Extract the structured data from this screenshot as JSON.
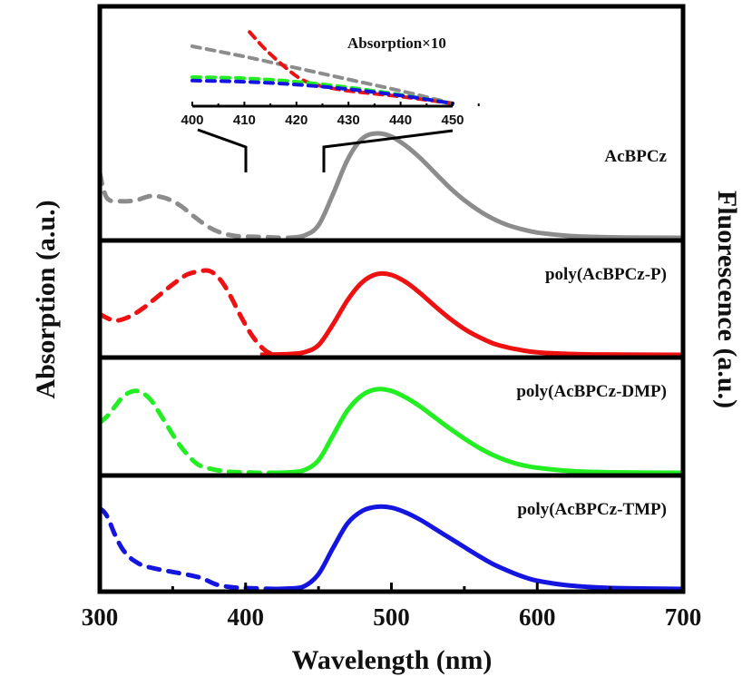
{
  "chart_data": {
    "type": "line",
    "title": "",
    "xlabel": "Wavelength (nm)",
    "ylabel_left": "Absorption (a.u.)",
    "ylabel_right": "Fluorescence (a.u.)",
    "xlim": [
      300,
      700
    ],
    "x_ticks": [
      300,
      400,
      500,
      600,
      700
    ],
    "x_tick_labels": [
      "300",
      "400",
      "500",
      "600",
      "700"
    ],
    "x_minor_ticks": [
      350,
      450,
      550,
      650
    ],
    "grid": false,
    "layout": "stacked-panels",
    "panels": [
      {
        "label": "AcBPCz",
        "color": "#8c8c8c",
        "absorption": {
          "style": "dashed",
          "x": [
            300,
            305,
            315,
            325,
            335,
            345,
            355,
            365,
            375,
            385,
            395,
            405,
            415,
            425,
            435
          ],
          "y": [
            0.62,
            0.38,
            0.35,
            0.36,
            0.4,
            0.38,
            0.31,
            0.2,
            0.1,
            0.04,
            0.015,
            0.01,
            0.005,
            0.0,
            0.0
          ]
        },
        "fluorescence": {
          "style": "solid",
          "x": [
            430,
            440,
            450,
            460,
            470,
            480,
            490,
            500,
            510,
            520,
            530,
            540,
            550,
            560,
            570,
            580,
            590,
            600,
            620,
            640,
            660,
            700
          ],
          "y": [
            0.0,
            0.02,
            0.12,
            0.42,
            0.75,
            0.95,
            1.0,
            0.97,
            0.88,
            0.76,
            0.62,
            0.48,
            0.36,
            0.26,
            0.18,
            0.12,
            0.08,
            0.05,
            0.02,
            0.008,
            0.003,
            0.0
          ]
        },
        "fluorescence_peak_nm": 497
      },
      {
        "label": "poly(AcBPCz-P)",
        "color": "#ee1111",
        "absorption": {
          "style": "dashed",
          "x": [
            300,
            310,
            320,
            330,
            340,
            350,
            360,
            370,
            375,
            380,
            385,
            390,
            395,
            400,
            405,
            410,
            415,
            420
          ],
          "y": [
            0.45,
            0.38,
            0.42,
            0.52,
            0.65,
            0.78,
            0.89,
            0.93,
            0.93,
            0.88,
            0.78,
            0.64,
            0.48,
            0.33,
            0.2,
            0.1,
            0.03,
            0.0
          ]
        },
        "fluorescence": {
          "style": "solid",
          "x": [
            410,
            420,
            430,
            440,
            450,
            460,
            470,
            480,
            490,
            500,
            510,
            520,
            530,
            540,
            550,
            560,
            570,
            580,
            590,
            600,
            620,
            640,
            660,
            700
          ],
          "y": [
            0.0,
            0.005,
            0.01,
            0.03,
            0.12,
            0.38,
            0.68,
            0.9,
            1.0,
            0.99,
            0.9,
            0.76,
            0.6,
            0.45,
            0.32,
            0.22,
            0.14,
            0.09,
            0.055,
            0.03,
            0.012,
            0.005,
            0.002,
            0.0
          ]
        },
        "fluorescence_peak_nm": 495
      },
      {
        "label": "poly(AcBPCz-DMP)",
        "color": "#22ee22",
        "absorption": {
          "style": "dashed",
          "x": [
            300,
            305,
            310,
            315,
            320,
            325,
            330,
            335,
            340,
            345,
            350,
            355,
            360,
            365,
            370,
            380,
            390,
            400,
            410,
            420
          ],
          "y": [
            0.55,
            0.62,
            0.72,
            0.82,
            0.88,
            0.9,
            0.87,
            0.8,
            0.68,
            0.55,
            0.42,
            0.3,
            0.2,
            0.12,
            0.07,
            0.03,
            0.01,
            0.005,
            0.0,
            0.0
          ]
        },
        "fluorescence": {
          "style": "solid",
          "x": [
            420,
            430,
            440,
            450,
            460,
            470,
            480,
            490,
            500,
            510,
            520,
            530,
            540,
            550,
            560,
            570,
            580,
            590,
            600,
            620,
            640,
            660,
            700
          ],
          "y": [
            0.0,
            0.005,
            0.03,
            0.15,
            0.45,
            0.75,
            0.93,
            1.0,
            0.98,
            0.9,
            0.79,
            0.66,
            0.53,
            0.41,
            0.3,
            0.21,
            0.14,
            0.09,
            0.06,
            0.025,
            0.01,
            0.004,
            0.0
          ]
        },
        "fluorescence_peak_nm": 498
      },
      {
        "label": "poly(AcBPCz-TMP)",
        "color": "#1515e0",
        "absorption": {
          "style": "dashed",
          "x": [
            300,
            303,
            306,
            310,
            315,
            320,
            325,
            330,
            340,
            350,
            360,
            370,
            380,
            390,
            400,
            410,
            420,
            440
          ],
          "y": [
            0.9,
            0.86,
            0.78,
            0.62,
            0.46,
            0.36,
            0.3,
            0.26,
            0.22,
            0.19,
            0.16,
            0.12,
            0.05,
            0.02,
            0.01,
            0.005,
            0.0,
            0.0
          ]
        },
        "fluorescence": {
          "style": "solid",
          "x": [
            420,
            430,
            440,
            450,
            460,
            470,
            480,
            490,
            500,
            510,
            520,
            530,
            540,
            550,
            560,
            570,
            580,
            590,
            600,
            620,
            640,
            660,
            700
          ],
          "y": [
            0.0,
            0.005,
            0.03,
            0.18,
            0.5,
            0.8,
            0.95,
            1.0,
            0.99,
            0.93,
            0.84,
            0.73,
            0.62,
            0.51,
            0.4,
            0.3,
            0.22,
            0.15,
            0.1,
            0.045,
            0.02,
            0.008,
            0.0
          ]
        },
        "fluorescence_peak_nm": 497
      }
    ],
    "inset": {
      "title": "Absorption×10",
      "xlim": [
        400,
        450
      ],
      "x_ticks": [
        400,
        410,
        420,
        430,
        440,
        450
      ],
      "x_tick_labels": [
        "400",
        "410",
        "420",
        "430",
        "440",
        "450"
      ],
      "zoom_range_main_axis_nm": [
        400,
        452
      ],
      "series": [
        {
          "name": "AcBPCz",
          "color": "#8c8c8c",
          "x": [
            400,
            410,
            420,
            430,
            440,
            450
          ],
          "y": [
            1.0,
            0.82,
            0.62,
            0.42,
            0.22,
            0.0
          ]
        },
        {
          "name": "poly(AcBPCz-P)",
          "color": "#ee1111",
          "x": [
            411,
            414,
            418,
            421,
            424,
            430,
            440,
            450
          ],
          "y": [
            1.25,
            0.95,
            0.62,
            0.42,
            0.32,
            0.22,
            0.12,
            0.0
          ]
        },
        {
          "name": "poly(AcBPCz-DMP)",
          "color": "#22ee22",
          "x": [
            400,
            410,
            420,
            430,
            440,
            450
          ],
          "y": [
            0.46,
            0.44,
            0.38,
            0.28,
            0.15,
            0.0
          ]
        },
        {
          "name": "poly(AcBPCz-TMP)",
          "color": "#1515e0",
          "x": [
            400,
            410,
            420,
            430,
            440,
            450
          ],
          "y": [
            0.4,
            0.38,
            0.33,
            0.25,
            0.14,
            0.0
          ]
        }
      ]
    }
  }
}
